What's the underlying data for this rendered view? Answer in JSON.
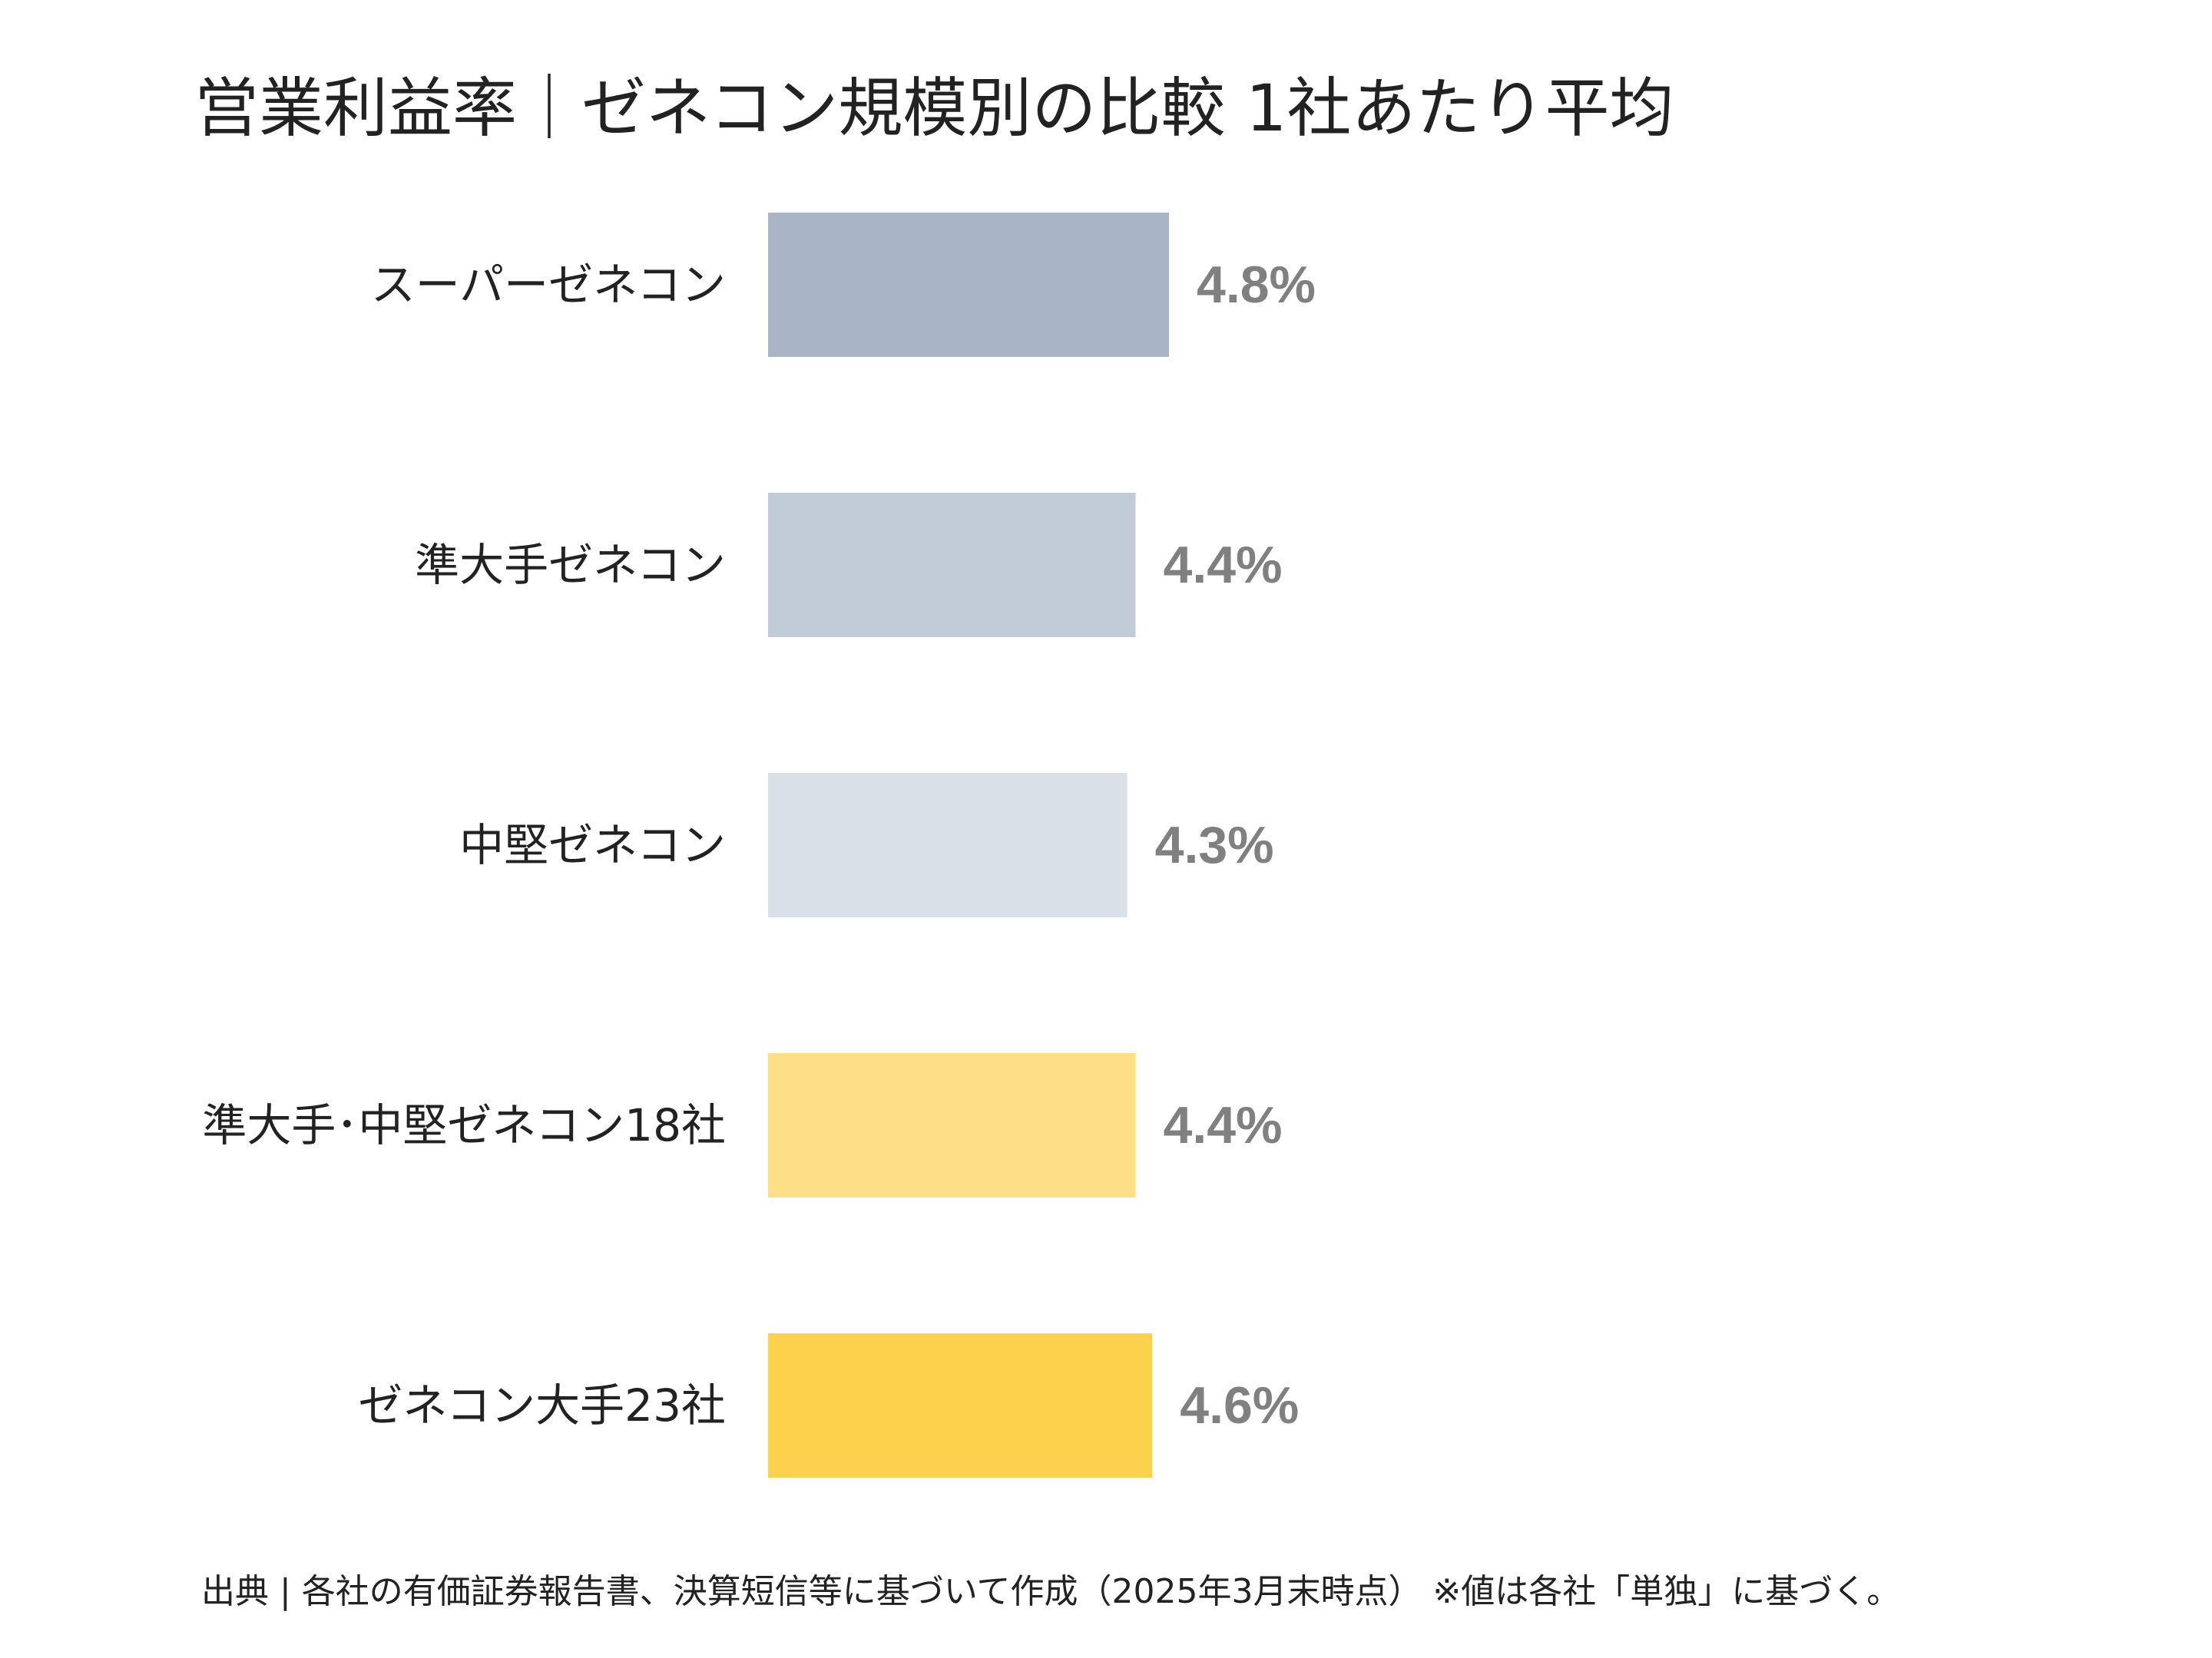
{
  "chart_data": {
    "type": "bar",
    "orientation": "horizontal",
    "title": "営業利益率｜ゼネコン規模別の比較 1社あたり平均",
    "categories": [
      "スーパーゼネコン",
      "準大手ゼネコン",
      "中堅ゼネコン",
      "準大手･中堅ゼネコン18社",
      "ゼネコン大手23社"
    ],
    "values": [
      4.8,
      4.4,
      4.3,
      4.4,
      4.6
    ],
    "value_labels": [
      "4.8%",
      "4.4%",
      "4.3%",
      "4.4%",
      "4.6%"
    ],
    "colors": [
      "#a9b5c6",
      "#c2ccd8",
      "#dae0e8",
      "#fddf85",
      "#fbd24c"
    ],
    "xlim": [
      0,
      4.8
    ],
    "grid": false,
    "legend": "none",
    "source": "出典 | 各社の有価証券報告書、決算短信等に基づいて作成（2025年3月末時点） ※値は各社「単独」に基づく。"
  }
}
